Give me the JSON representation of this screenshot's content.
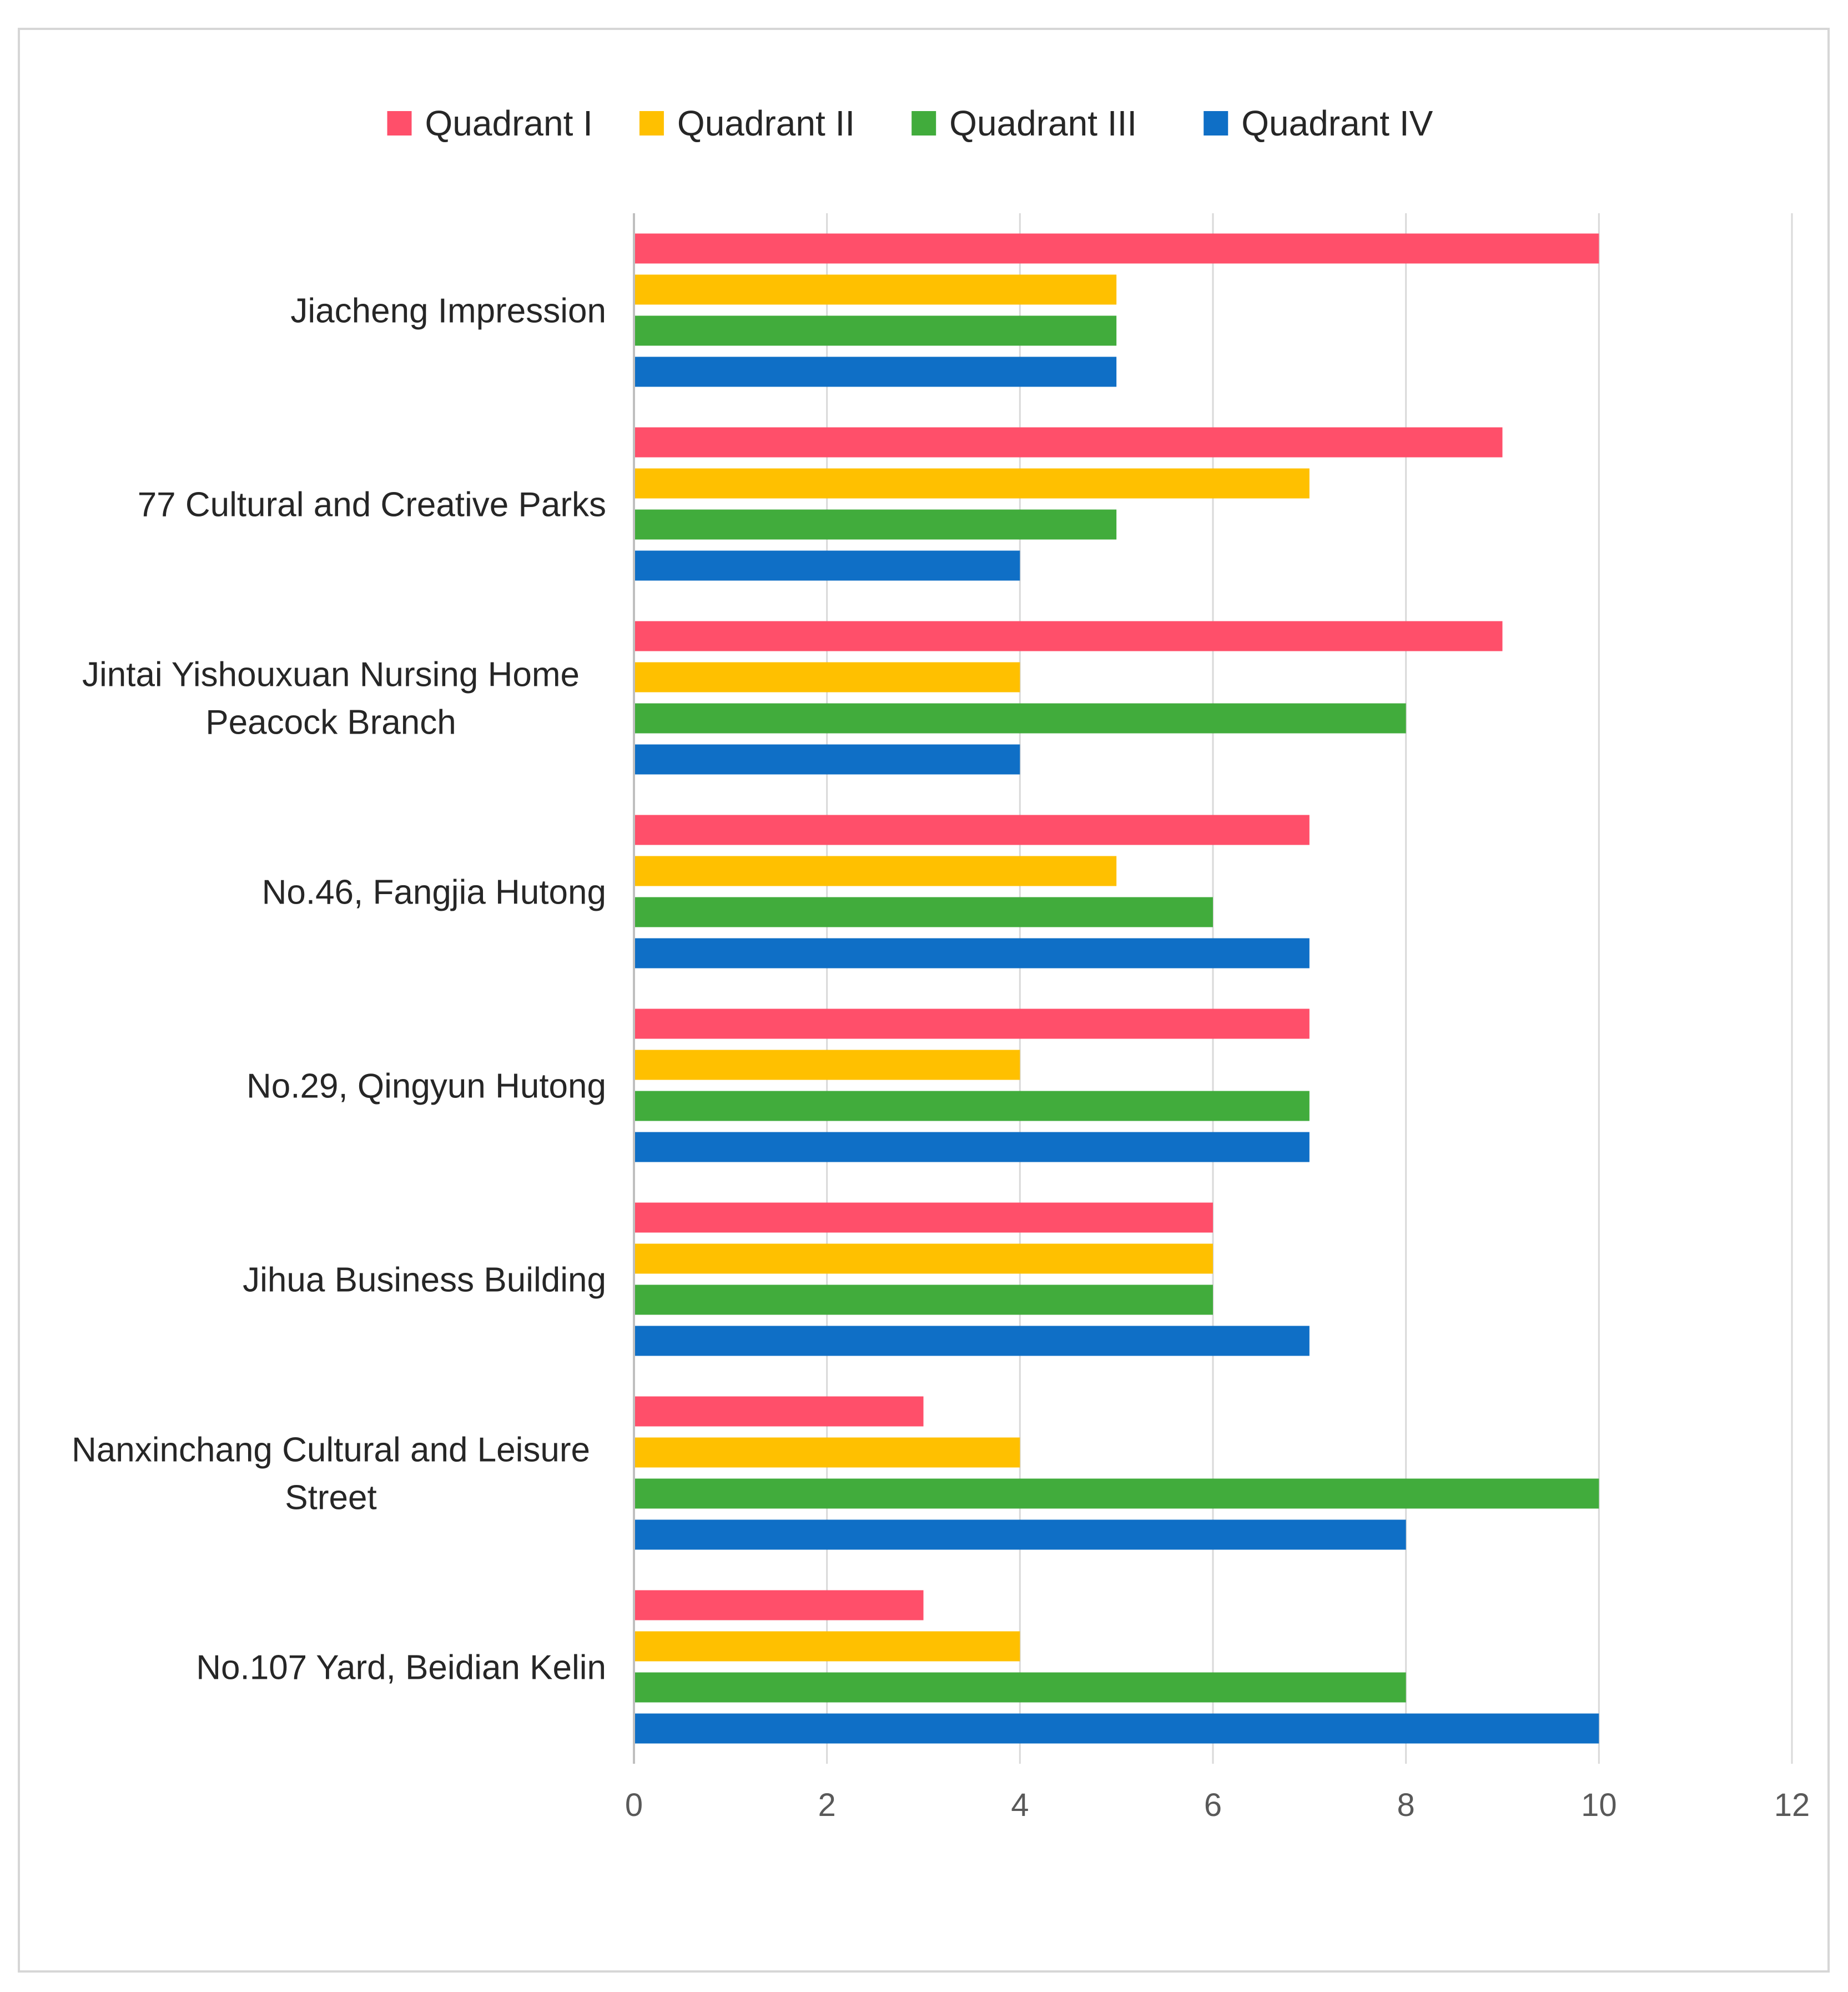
{
  "chart_data": {
    "type": "bar",
    "orientation": "horizontal",
    "title": "",
    "xlabel": "",
    "ylabel": "",
    "xlim": [
      0,
      12
    ],
    "x_ticks": [
      0,
      2,
      4,
      6,
      8,
      10,
      12
    ],
    "grid": true,
    "legend_position": "top",
    "categories": [
      [
        "Jiacheng Impression"
      ],
      [
        "77 Cultural and Creative Parks"
      ],
      [
        "Jintai Yishouxuan Nursing Home",
        "Peacock Branch"
      ],
      [
        "No.46, Fangjia Hutong"
      ],
      [
        "No.29, Qingyun Hutong"
      ],
      [
        "Jihua Business Building"
      ],
      [
        "Nanxinchang Cultural and Leisure",
        "Street"
      ],
      [
        "No.107 Yard, Beidian Kelin"
      ]
    ],
    "series": [
      {
        "name": "Quadrant I",
        "color": "#ff4f6a",
        "values": [
          10,
          9,
          9,
          7,
          7,
          6,
          3,
          3
        ]
      },
      {
        "name": "Quadrant II",
        "color": "#ffc000",
        "values": [
          5,
          7,
          4,
          5,
          4,
          6,
          4,
          4
        ]
      },
      {
        "name": "Quadrant III",
        "color": "#41ac3c",
        "values": [
          5,
          5,
          8,
          6,
          7,
          6,
          10,
          8
        ]
      },
      {
        "name": "Quadrant IV",
        "color": "#0f6fc6",
        "values": [
          5,
          4,
          4,
          7,
          7,
          7,
          8,
          10
        ]
      }
    ]
  }
}
